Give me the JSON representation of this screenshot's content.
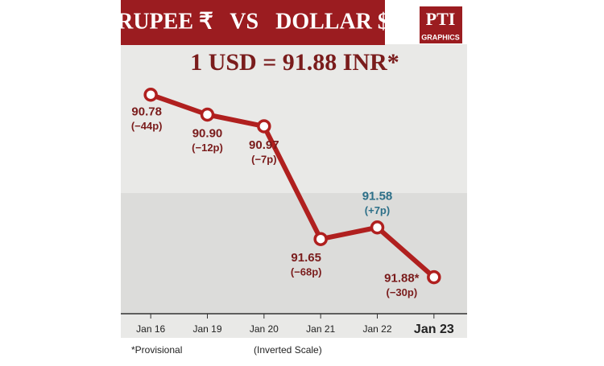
{
  "chart_data": {
    "type": "line",
    "title": "RUPEE ₹   VS   DOLLAR $",
    "headline": "1 USD = 91.88 INR*",
    "logo": "PTI",
    "logo_subtitle": "GRAPHICS",
    "footnote": "*Provisional",
    "scale_note": "(Inverted Scale)",
    "categories": [
      "Jan 16",
      "Jan 19",
      "Jan 20",
      "Jan 21",
      "Jan 22",
      "Jan 23"
    ],
    "series": [
      {
        "color": "#b0201f",
        "values": [
          90.78,
          90.9,
          90.97,
          91.65,
          91.58,
          91.88
        ],
        "value_labels": [
          "90.78",
          "90.90",
          "90.97",
          "91.65",
          "91.58",
          "91.88*"
        ],
        "change_labels": [
          "(−44p)",
          "(−12p)",
          "(−7p)",
          "(−68p)",
          "(+7p)",
          "(−30p)"
        ],
        "label_colors": [
          "#7a1c1c",
          "#7a1c1c",
          "#7a1c1c",
          "#7a1c1c",
          "#2c6f88",
          "#7a1c1c"
        ]
      }
    ],
    "ylim": [
      90.5,
      92.1
    ],
    "inverted": true
  }
}
